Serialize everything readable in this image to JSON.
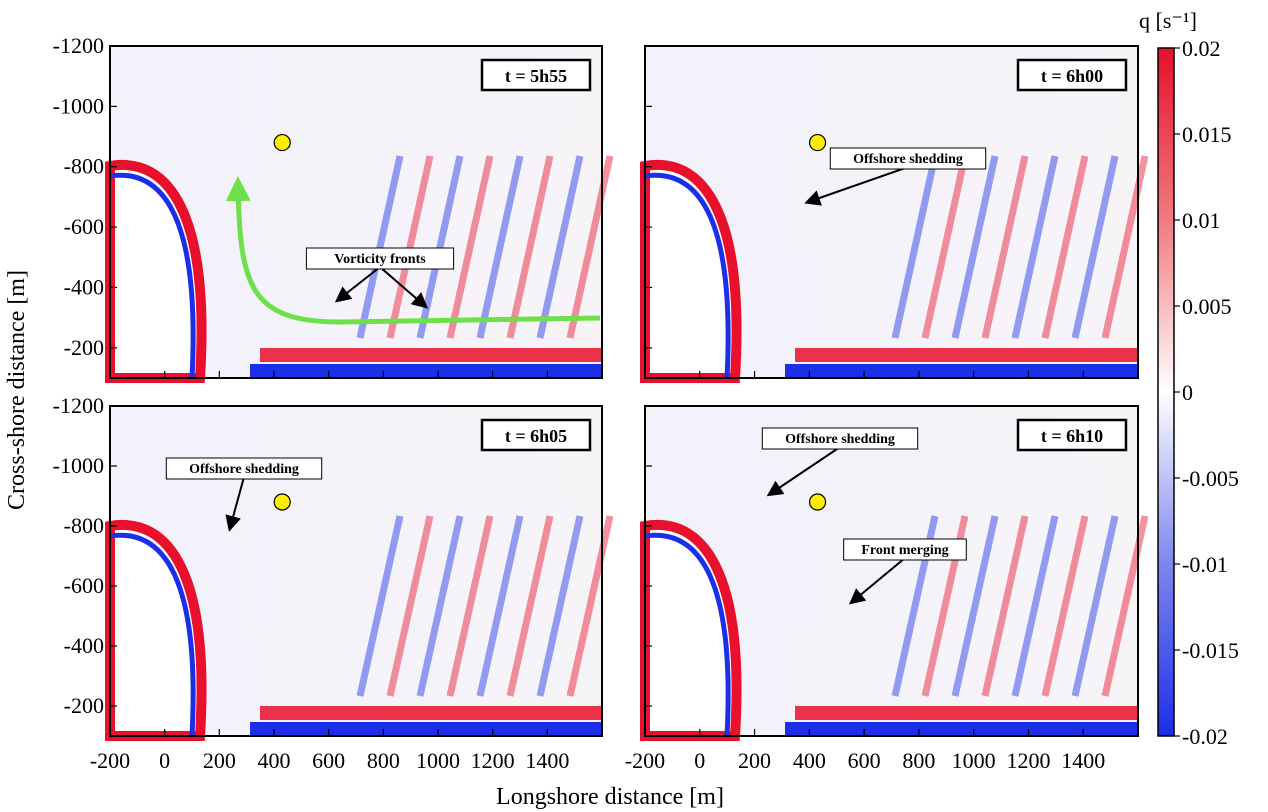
{
  "chart_data": {
    "type": "heatmap",
    "xlabel": "Longshore distance [m]",
    "ylabel": "Cross-shore distance [m]",
    "x_ticks": [
      "-200",
      "0",
      "200",
      "400",
      "600",
      "800",
      "1000",
      "1200",
      "1400"
    ],
    "y_ticks": [
      "-1200",
      "-1000",
      "-800",
      "-600",
      "-400",
      "-200"
    ],
    "xlim": [
      -200,
      1600
    ],
    "ylim": [
      -1200,
      -100
    ],
    "colorbar": {
      "label": "q [s⁻¹]",
      "ticks": [
        "0.02",
        "0.015",
        "0.01",
        "0.005",
        "0",
        "-0.005",
        "-0.01",
        "-0.015",
        "-0.02"
      ],
      "range": [
        -0.02,
        0.02
      ],
      "colors": {
        "positive": "#e8102a",
        "zero": "#ffffff",
        "negative": "#1b2ee8"
      }
    },
    "panels": [
      {
        "id": "a",
        "time": "t = 5h55",
        "marker": {
          "x": 430,
          "y": -880
        },
        "annotations": [
          {
            "text": "Vorticity fronts"
          }
        ],
        "arrow_color": "#6ee04a"
      },
      {
        "id": "b",
        "time": "t = 6h00",
        "marker": {
          "x": 430,
          "y": -880
        },
        "annotations": [
          {
            "text": "Offshore shedding"
          }
        ]
      },
      {
        "id": "c",
        "time": "t = 6h05",
        "marker": {
          "x": 430,
          "y": -880
        },
        "annotations": [
          {
            "text": "Offshore shedding"
          }
        ]
      },
      {
        "id": "d",
        "time": "t = 6h10",
        "marker": {
          "x": 430,
          "y": -880
        },
        "annotations": [
          {
            "text": "Offshore shedding"
          },
          {
            "text": "Front merging"
          }
        ]
      }
    ],
    "marker_color": "#ffee00"
  }
}
